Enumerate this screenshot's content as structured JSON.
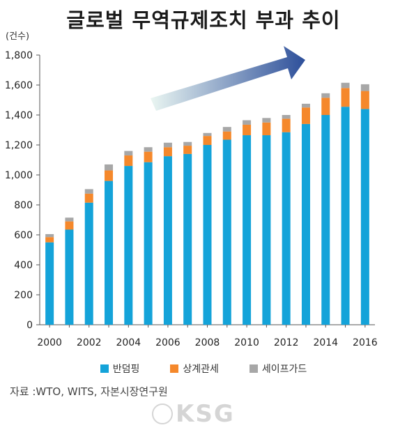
{
  "title": "글로벌 무역규제조치 부과 추이",
  "colors": {
    "antidumping": "#14a3d9",
    "countervailing": "#f5882b",
    "safeguard": "#a7a7a7",
    "arrow_start": "#eaf6f2",
    "arrow_end": "#2d4f9a"
  },
  "legend": {
    "antidumping": "반덤핑",
    "countervailing": "상계관세",
    "safeguard": "세이프가드"
  },
  "source": "자료 :WTO, WITS, 자본시장연구원",
  "watermark": "KSG",
  "chart_data": {
    "type": "bar",
    "stacked": true,
    "title": "글로벌 무역규제조치 부과 추이",
    "ylabel": "(건수)",
    "xlabel": "",
    "ylim": [
      0,
      1800
    ],
    "yticks": [
      0,
      200,
      400,
      600,
      800,
      1000,
      1200,
      1400,
      1600,
      1800
    ],
    "ytick_labels": [
      "0",
      "200",
      "400",
      "600",
      "800",
      "1,000",
      "1,200",
      "1,400",
      "1,600",
      "1,800"
    ],
    "categories": [
      "2000",
      "2001",
      "2002",
      "2003",
      "2004",
      "2005",
      "2006",
      "2007",
      "2008",
      "2009",
      "2010",
      "2011",
      "2012",
      "2013",
      "2014",
      "2015",
      "2016"
    ],
    "xtick_labels": [
      "2000",
      "",
      "2002",
      "",
      "2004",
      "",
      "2006",
      "",
      "2008",
      "",
      "2010",
      "",
      "2012",
      "",
      "2014",
      "",
      "2016"
    ],
    "series": [
      {
        "name": "반덤핑",
        "values": [
          550,
          635,
          815,
          960,
          1060,
          1085,
          1125,
          1140,
          1200,
          1235,
          1265,
          1265,
          1285,
          1340,
          1400,
          1455,
          1440
        ]
      },
      {
        "name": "상계관세",
        "values": [
          35,
          55,
          60,
          70,
          70,
          70,
          60,
          55,
          60,
          55,
          70,
          85,
          90,
          110,
          115,
          125,
          120
        ]
      },
      {
        "name": "세이프가드",
        "values": [
          20,
          25,
          30,
          40,
          30,
          30,
          30,
          25,
          20,
          30,
          30,
          30,
          25,
          25,
          30,
          35,
          45
        ]
      }
    ],
    "grid": false,
    "legend_position": "bottom"
  }
}
